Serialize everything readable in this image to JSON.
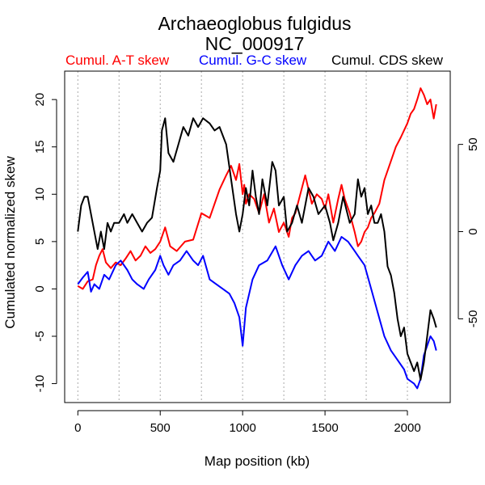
{
  "chart_data": {
    "type": "line",
    "title": "Archaeoglobus fulgidus",
    "subtitle": "NC_000917",
    "xlabel": "Map position (kb)",
    "ylabel": "Cumulated normalized skew",
    "xlim": [
      -80,
      2260
    ],
    "ylim": [
      -12,
      23
    ],
    "y2lim": [
      -98,
      92
    ],
    "grid_vertical_at": [
      0,
      250,
      500,
      750,
      1000,
      1250,
      1500,
      1750,
      2000
    ],
    "xticks": [
      0,
      500,
      1000,
      1500,
      2000
    ],
    "yticks": [
      -10,
      -5,
      0,
      5,
      10,
      15,
      20
    ],
    "y2ticks": [
      -50,
      0,
      50
    ],
    "legend": [
      {
        "label": "Cumul. A-T skew",
        "color": "#ff0000"
      },
      {
        "label": "Cumul. G-C skew",
        "color": "#0000ff"
      },
      {
        "label": "Cumul. CDS skew",
        "color": "#000000"
      }
    ],
    "series": [
      {
        "name": "Cumul. A-T skew",
        "axis": "left",
        "color": "#ff0000",
        "x": [
          0,
          30,
          60,
          90,
          110,
          130,
          150,
          170,
          200,
          230,
          260,
          290,
          320,
          350,
          380,
          410,
          440,
          470,
          500,
          530,
          560,
          600,
          650,
          700,
          750,
          800,
          830,
          860,
          900,
          930,
          960,
          980,
          1000,
          1010,
          1020,
          1040,
          1070,
          1100,
          1130,
          1160,
          1190,
          1220,
          1250,
          1280,
          1300,
          1320,
          1350,
          1380,
          1400,
          1420,
          1450,
          1480,
          1500,
          1520,
          1550,
          1580,
          1600,
          1620,
          1650,
          1680,
          1700,
          1720,
          1740,
          1760,
          1780,
          1800,
          1830,
          1860,
          1900,
          1930,
          1960,
          2000,
          2020,
          2040,
          2060,
          2080,
          2100,
          2120,
          2140,
          2160,
          2175
        ],
        "values": [
          0.3,
          0.0,
          0.8,
          1.0,
          2.5,
          3.5,
          4.2,
          2.8,
          2.2,
          2.8,
          2.5,
          3.2,
          4.0,
          3.0,
          3.5,
          4.5,
          3.8,
          4.2,
          5.0,
          6.5,
          4.5,
          4.0,
          5.0,
          5.2,
          8.0,
          7.5,
          9.0,
          10.5,
          12.0,
          13.0,
          11.5,
          13.2,
          10.0,
          11.0,
          9.0,
          10.0,
          9.5,
          8.0,
          10.0,
          7.0,
          8.5,
          6.0,
          7.0,
          5.5,
          7.5,
          8.0,
          10.0,
          12.0,
          10.5,
          9.0,
          10.0,
          9.5,
          8.5,
          10.0,
          7.0,
          9.5,
          11.0,
          9.5,
          8.0,
          6.0,
          4.5,
          5.0,
          6.0,
          6.5,
          7.5,
          8.0,
          9.0,
          11.5,
          13.5,
          15.0,
          16.0,
          17.5,
          18.5,
          19.0,
          20.0,
          21.2,
          20.5,
          19.5,
          20.0,
          18.0,
          19.5
        ]
      },
      {
        "name": "Cumul. G-C skew",
        "axis": "left",
        "color": "#0000ff",
        "x": [
          0,
          30,
          60,
          80,
          100,
          130,
          160,
          190,
          230,
          260,
          300,
          330,
          360,
          400,
          430,
          470,
          500,
          520,
          550,
          580,
          620,
          660,
          700,
          730,
          760,
          800,
          840,
          880,
          920,
          950,
          980,
          1000,
          1020,
          1060,
          1100,
          1150,
          1200,
          1240,
          1280,
          1320,
          1360,
          1400,
          1440,
          1480,
          1520,
          1560,
          1600,
          1640,
          1680,
          1700,
          1740,
          1780,
          1820,
          1860,
          1900,
          1940,
          1980,
          2000,
          2040,
          2060,
          2080,
          2100,
          2120,
          2140,
          2160,
          2175
        ],
        "values": [
          0.5,
          1.2,
          1.8,
          -0.3,
          0.5,
          0.0,
          1.5,
          1.0,
          2.5,
          3.0,
          2.0,
          1.0,
          0.5,
          0.0,
          1.0,
          2.0,
          3.5,
          2.5,
          1.5,
          2.5,
          3.0,
          4.0,
          3.0,
          2.5,
          3.5,
          1.0,
          0.5,
          0.0,
          -0.5,
          -1.5,
          -3.0,
          -6.0,
          -2.0,
          1.0,
          2.5,
          3.0,
          4.5,
          2.5,
          1.0,
          2.5,
          3.5,
          4.0,
          3.0,
          3.5,
          5.0,
          4.0,
          5.5,
          5.0,
          4.0,
          3.5,
          2.5,
          0.0,
          -2.5,
          -5.0,
          -6.5,
          -7.5,
          -8.5,
          -9.5,
          -10.0,
          -10.5,
          -9.5,
          -7.0,
          -6.0,
          -5.0,
          -5.5,
          -6.5
        ]
      },
      {
        "name": "Cumul. CDS skew",
        "axis": "right",
        "color": "#000000",
        "x": [
          0,
          20,
          40,
          60,
          80,
          100,
          120,
          140,
          160,
          180,
          200,
          220,
          250,
          280,
          300,
          330,
          360,
          390,
          420,
          450,
          480,
          500,
          510,
          530,
          550,
          580,
          610,
          640,
          670,
          700,
          730,
          760,
          800,
          830,
          860,
          900,
          930,
          960,
          980,
          1000,
          1020,
          1040,
          1060,
          1080,
          1100,
          1120,
          1150,
          1180,
          1200,
          1220,
          1250,
          1270,
          1300,
          1330,
          1360,
          1400,
          1430,
          1460,
          1500,
          1530,
          1550,
          1580,
          1610,
          1650,
          1680,
          1700,
          1720,
          1740,
          1760,
          1780,
          1800,
          1820,
          1840,
          1860,
          1880,
          1900,
          1920,
          1940,
          1960,
          1980,
          2000,
          2020,
          2040,
          2060,
          2080,
          2100,
          2120,
          2140,
          2160,
          2175
        ],
        "values": [
          0,
          15,
          20,
          20,
          10,
          0,
          -10,
          0,
          -10,
          5,
          0,
          5,
          5,
          10,
          5,
          10,
          5,
          0,
          5,
          8,
          25,
          35,
          58,
          65,
          45,
          40,
          50,
          60,
          55,
          65,
          60,
          65,
          62,
          58,
          60,
          50,
          30,
          10,
          0,
          10,
          25,
          15,
          35,
          20,
          10,
          30,
          15,
          40,
          35,
          15,
          20,
          0,
          5,
          15,
          5,
          25,
          20,
          10,
          15,
          5,
          -5,
          5,
          20,
          5,
          10,
          30,
          20,
          25,
          10,
          15,
          5,
          5,
          10,
          0,
          -20,
          -25,
          -35,
          -50,
          -60,
          -55,
          -70,
          -75,
          -80,
          -75,
          -85,
          -75,
          -60,
          -45,
          -50,
          -55
        ]
      }
    ]
  }
}
